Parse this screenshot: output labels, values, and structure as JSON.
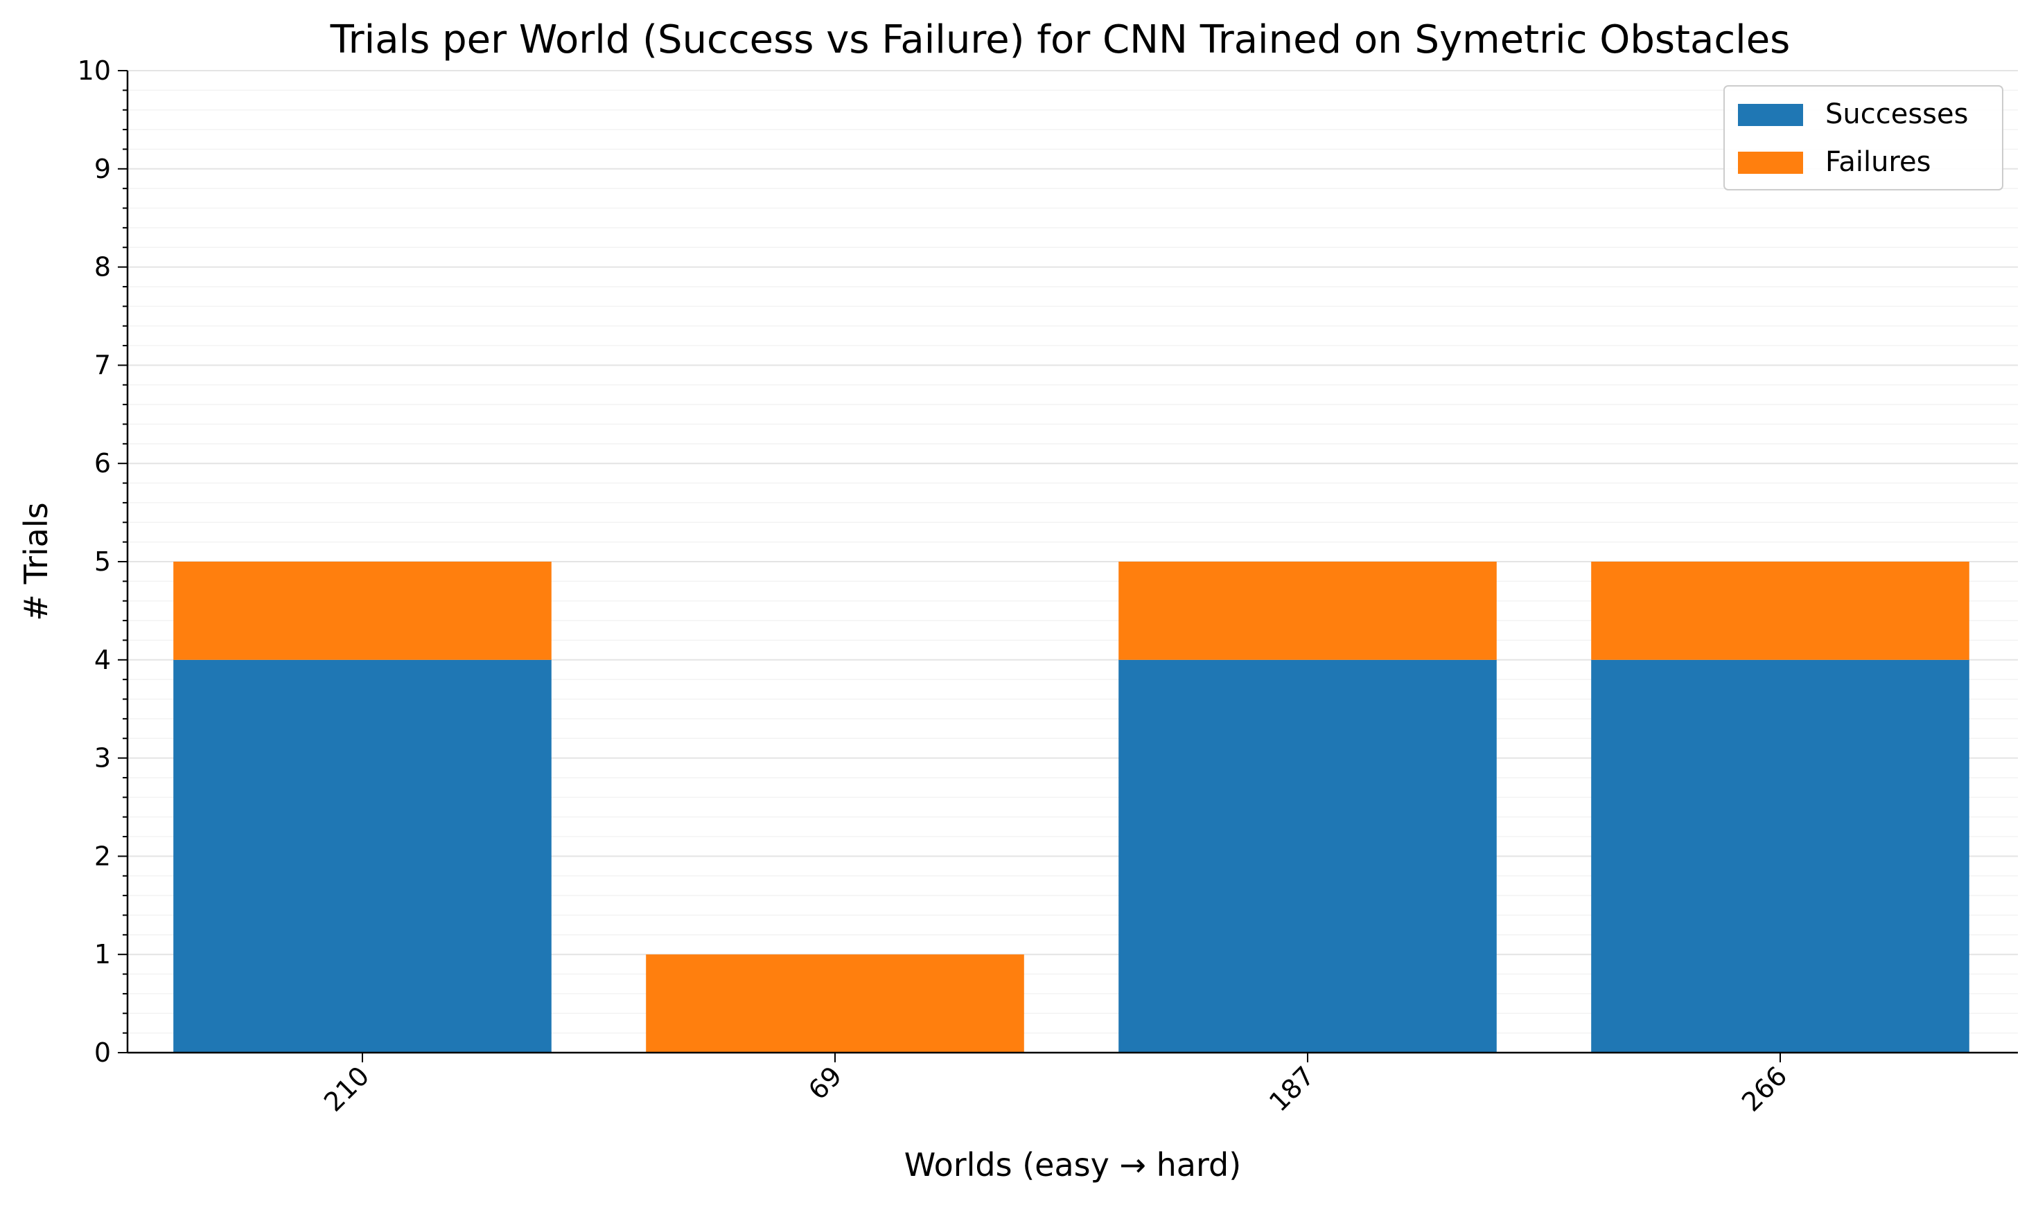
{
  "chart_data": {
    "type": "bar",
    "stacked": true,
    "title": "Trials per World (Success vs Failure) for CNN Trained on Symetric Obstacles",
    "xlabel": "Worlds (easy → hard)",
    "ylabel": "# Trials",
    "categories": [
      "210",
      "69",
      "187",
      "266"
    ],
    "series": [
      {
        "name": "Successes",
        "values": [
          4,
          0,
          4,
          4
        ],
        "color": "#1f77b4"
      },
      {
        "name": "Failures",
        "values": [
          1,
          1,
          1,
          1
        ],
        "color": "#ff7f0e"
      }
    ],
    "ylim": [
      0,
      10
    ],
    "yticks": [
      "0",
      "1",
      "2",
      "3",
      "4",
      "5",
      "6",
      "7",
      "8",
      "9",
      "10"
    ],
    "grid": true,
    "legend_position": "top-right"
  }
}
